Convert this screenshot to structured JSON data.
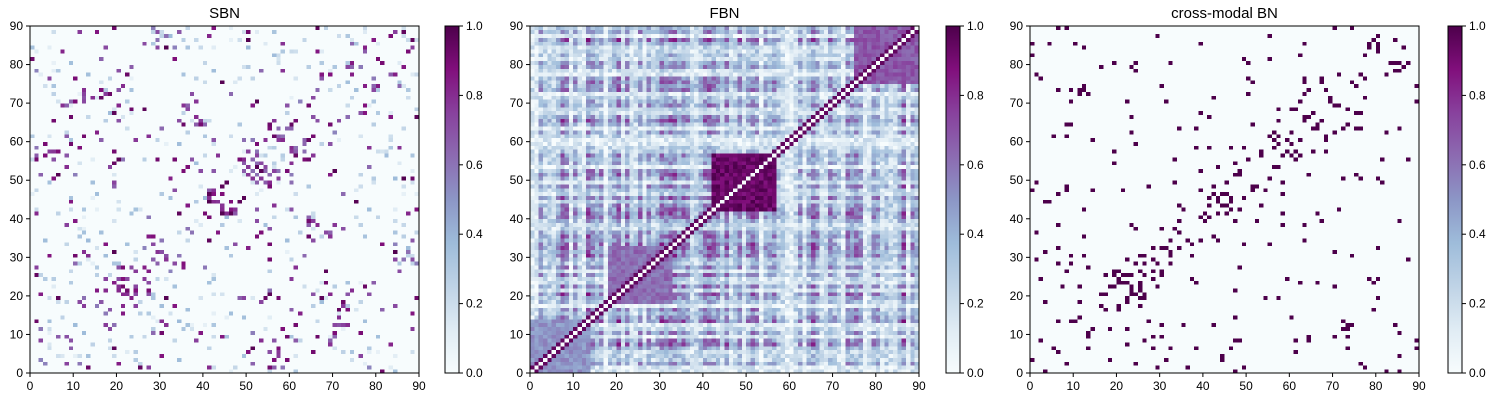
{
  "chart_data": [
    {
      "type": "heatmap",
      "title": "SBN",
      "matrix_size": 90,
      "xlim": [
        0,
        90
      ],
      "ylim": [
        0,
        90
      ],
      "x_ticks": [
        0,
        10,
        20,
        30,
        40,
        50,
        60,
        70,
        80,
        90
      ],
      "y_ticks": [
        0,
        10,
        20,
        30,
        40,
        50,
        60,
        70,
        80,
        90
      ],
      "colorbar": {
        "range": [
          0.0,
          1.0
        ],
        "ticks": [
          "0.0",
          "0.2",
          "0.4",
          "0.6",
          "0.8",
          "1.0"
        ]
      },
      "colormap": [
        "#f7fcfd",
        "#e0ecf4",
        "#bfd3e6",
        "#9ebcda",
        "#8c96c6",
        "#8c6bb1",
        "#88419d",
        "#810f7c",
        "#4d004b"
      ],
      "pattern": "sparse",
      "density": 0.035,
      "diagonal": 0.0,
      "seed": 11,
      "hotspots": [
        [
          12,
          72
        ],
        [
          3,
          57
        ],
        [
          38,
          67
        ],
        [
          72,
          19
        ],
        [
          45,
          44
        ],
        [
          25,
          22
        ],
        [
          52,
          52
        ],
        [
          63,
          60
        ]
      ]
    },
    {
      "type": "heatmap",
      "title": "FBN",
      "matrix_size": 90,
      "xlim": [
        0,
        90
      ],
      "ylim": [
        0,
        90
      ],
      "x_ticks": [
        0,
        10,
        20,
        30,
        40,
        50,
        60,
        70,
        80,
        90
      ],
      "y_ticks": [
        0,
        10,
        20,
        30,
        40,
        50,
        60,
        70,
        80,
        90
      ],
      "colorbar": {
        "range": [
          0.0,
          1.0
        ],
        "ticks": [
          "0.0",
          "0.2",
          "0.4",
          "0.6",
          "0.8",
          "1.0"
        ]
      },
      "colormap": [
        "#f7fcfd",
        "#e0ecf4",
        "#bfd3e6",
        "#9ebcda",
        "#8c96c6",
        "#8c6bb1",
        "#88419d",
        "#810f7c",
        "#4d004b"
      ],
      "pattern": "dense",
      "diagonal": 0.0,
      "seed": 23,
      "blocks": [
        {
          "range": [
            42,
            57
          ],
          "value": 0.93
        },
        {
          "range": [
            18,
            33
          ],
          "value": 0.62
        },
        {
          "range": [
            0,
            14
          ],
          "value": 0.5
        },
        {
          "range": [
            75,
            90
          ],
          "value": 0.68
        }
      ]
    },
    {
      "type": "heatmap",
      "title": "cross-modal BN",
      "matrix_size": 90,
      "xlim": [
        0,
        90
      ],
      "ylim": [
        0,
        90
      ],
      "x_ticks": [
        0,
        10,
        20,
        30,
        40,
        50,
        60,
        70,
        80,
        90
      ],
      "y_ticks": [
        0,
        10,
        20,
        30,
        40,
        50,
        60,
        70,
        80,
        90
      ],
      "colorbar": {
        "range": [
          0.0,
          1.0
        ],
        "ticks": [
          "0.0",
          "0.2",
          "0.4",
          "0.6",
          "0.8",
          "1.0"
        ]
      },
      "colormap": [
        "#f7fcfd",
        "#e0ecf4",
        "#bfd3e6",
        "#9ebcda",
        "#8c96c6",
        "#8c6bb1",
        "#88419d",
        "#810f7c",
        "#4d004b"
      ],
      "pattern": "binary",
      "density": 0.025,
      "diagonal": 0.0,
      "seed": 37,
      "hotspots": [
        [
          12,
          72
        ],
        [
          45,
          44
        ],
        [
          25,
          22
        ],
        [
          60,
          58
        ],
        [
          33,
          35
        ],
        [
          80,
          85
        ],
        [
          75,
          66
        ]
      ]
    }
  ]
}
